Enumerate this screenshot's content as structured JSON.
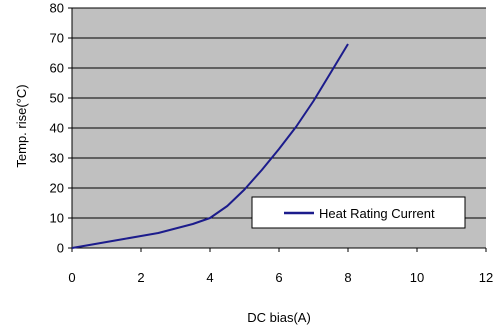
{
  "chart_data": {
    "type": "line",
    "title": "",
    "xlabel": "DC bias(A)",
    "ylabel": "Temp. rise(°C)",
    "xlim": [
      0,
      12
    ],
    "ylim": [
      0,
      80
    ],
    "x_ticks": [
      "0",
      "2",
      "4",
      "6",
      "8",
      "10",
      "12"
    ],
    "y_ticks": [
      "0",
      "10",
      "20",
      "30",
      "40",
      "50",
      "60",
      "70",
      "80"
    ],
    "grid": "horizontal",
    "legend_position": "lower-right",
    "colors": {
      "plot_background": "#c0c0c0",
      "series": "#1c1c8c"
    },
    "series": [
      {
        "name": "Heat Rating Current",
        "x": [
          0,
          0.5,
          1,
          1.5,
          2,
          2.5,
          3,
          3.5,
          4,
          4.5,
          5,
          5.5,
          6,
          6.5,
          7,
          7.5,
          8
        ],
        "y": [
          0,
          1,
          2,
          3,
          4,
          5,
          6.5,
          8,
          10,
          14,
          19.5,
          26,
          33,
          40.5,
          49,
          58.5,
          68
        ]
      }
    ]
  }
}
